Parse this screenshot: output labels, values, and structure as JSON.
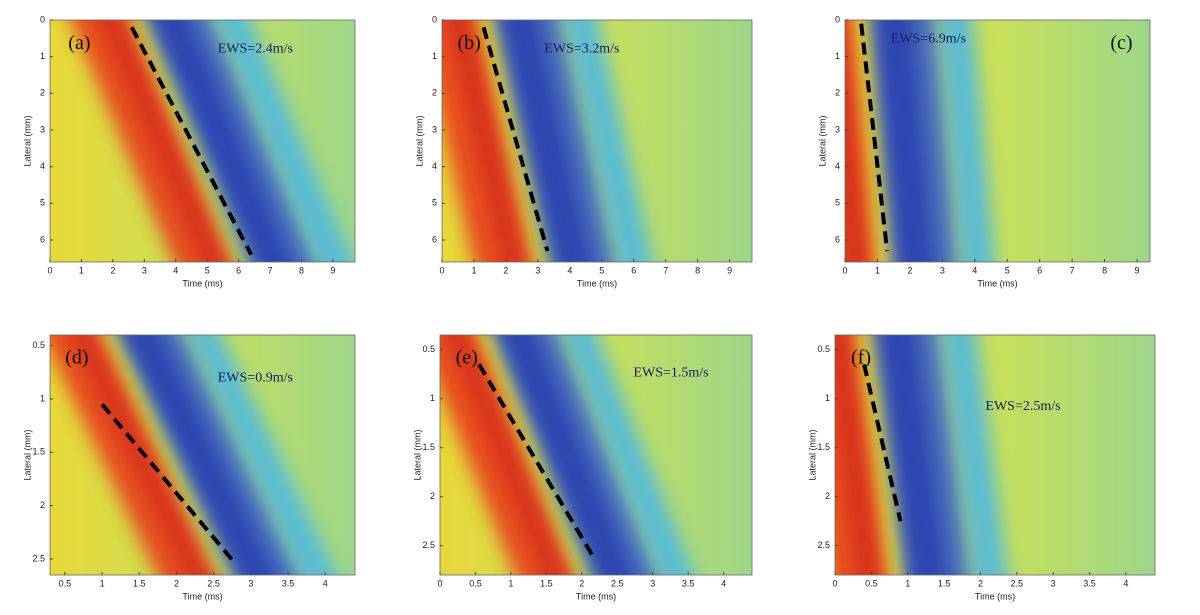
{
  "chart_data": [
    {
      "type": "heatmap",
      "label": "(a)",
      "annotation": "EWS=2.4m/s",
      "xlabel": "Time (ms)",
      "ylabel": "Lateral (mm)",
      "xlim": [
        0,
        9.7
      ],
      "xticks": [
        0,
        1,
        2,
        3,
        4,
        5,
        6,
        7,
        8,
        9
      ],
      "ylim": [
        0,
        6.6
      ],
      "yticks": [
        0,
        1,
        2,
        3,
        4,
        5,
        6
      ],
      "fit_line": {
        "x": [
          2.6,
          6.4
        ],
        "y": [
          0.2,
          6.4
        ]
      }
    },
    {
      "type": "heatmap",
      "label": "(b)",
      "annotation": "EWS=3.2m/s",
      "xlabel": "Time (ms)",
      "ylabel": "Lateral (mm)",
      "xlim": [
        0,
        9.7
      ],
      "xticks": [
        0,
        1,
        2,
        3,
        4,
        5,
        6,
        7,
        8,
        9
      ],
      "ylim": [
        0,
        6.6
      ],
      "yticks": [
        0,
        1,
        2,
        3,
        4,
        5,
        6
      ],
      "fit_line": {
        "x": [
          1.3,
          3.3
        ],
        "y": [
          0.2,
          6.3
        ]
      }
    },
    {
      "type": "heatmap",
      "label": "(c)",
      "annotation": "EWS=6.9m/s",
      "xlabel": "Time (ms)",
      "ylabel": "Lateral (mm)",
      "xlim": [
        0,
        9.4
      ],
      "xticks": [
        0,
        1,
        2,
        3,
        4,
        5,
        6,
        7,
        8,
        9
      ],
      "ylim": [
        0,
        6.6
      ],
      "yticks": [
        0,
        1,
        2,
        3,
        4,
        5,
        6
      ],
      "fit_line": {
        "x": [
          0.5,
          1.3
        ],
        "y": [
          0.1,
          6.3
        ]
      }
    },
    {
      "type": "heatmap",
      "label": "(d)",
      "annotation": "EWS=0.9m/s",
      "xlabel": "Time (ms)",
      "ylabel": "Lateral (mm)",
      "xlim": [
        0.3,
        4.4
      ],
      "xticks": [
        0.5,
        1,
        1.5,
        2,
        2.5,
        3,
        3.5,
        4
      ],
      "ylim": [
        0.4,
        2.65
      ],
      "yticks": [
        0.5,
        1,
        1.5,
        2,
        2.5
      ],
      "fit_line": {
        "x": [
          1.0,
          2.8
        ],
        "y": [
          1.05,
          2.55
        ]
      }
    },
    {
      "type": "heatmap",
      "label": "(e)",
      "annotation": "EWS=1.5m/s",
      "xlabel": "Time (ms)",
      "ylabel": "Lateral (mm)",
      "xlim": [
        0,
        4.4
      ],
      "xticks": [
        0,
        0.5,
        1,
        1.5,
        2,
        2.5,
        3,
        3.5,
        4
      ],
      "ylim": [
        0.35,
        2.8
      ],
      "yticks": [
        0.5,
        1,
        1.5,
        2,
        2.5
      ],
      "fit_line": {
        "x": [
          0.55,
          2.15
        ],
        "y": [
          0.65,
          2.6
        ]
      }
    },
    {
      "type": "heatmap",
      "label": "(f)",
      "annotation": "EWS=2.5m/s",
      "xlabel": "Time (ms)",
      "ylabel": "Lateral (mm)",
      "xlim": [
        0,
        4.4
      ],
      "xticks": [
        0,
        0.5,
        1,
        1.5,
        2,
        2.5,
        3,
        3.5,
        4
      ],
      "ylim": [
        0.35,
        2.8
      ],
      "yticks": [
        0.5,
        1,
        1.5,
        2,
        2.5
      ],
      "fit_line": {
        "x": [
          0.4,
          0.9
        ],
        "y": [
          0.65,
          2.25
        ]
      }
    }
  ]
}
